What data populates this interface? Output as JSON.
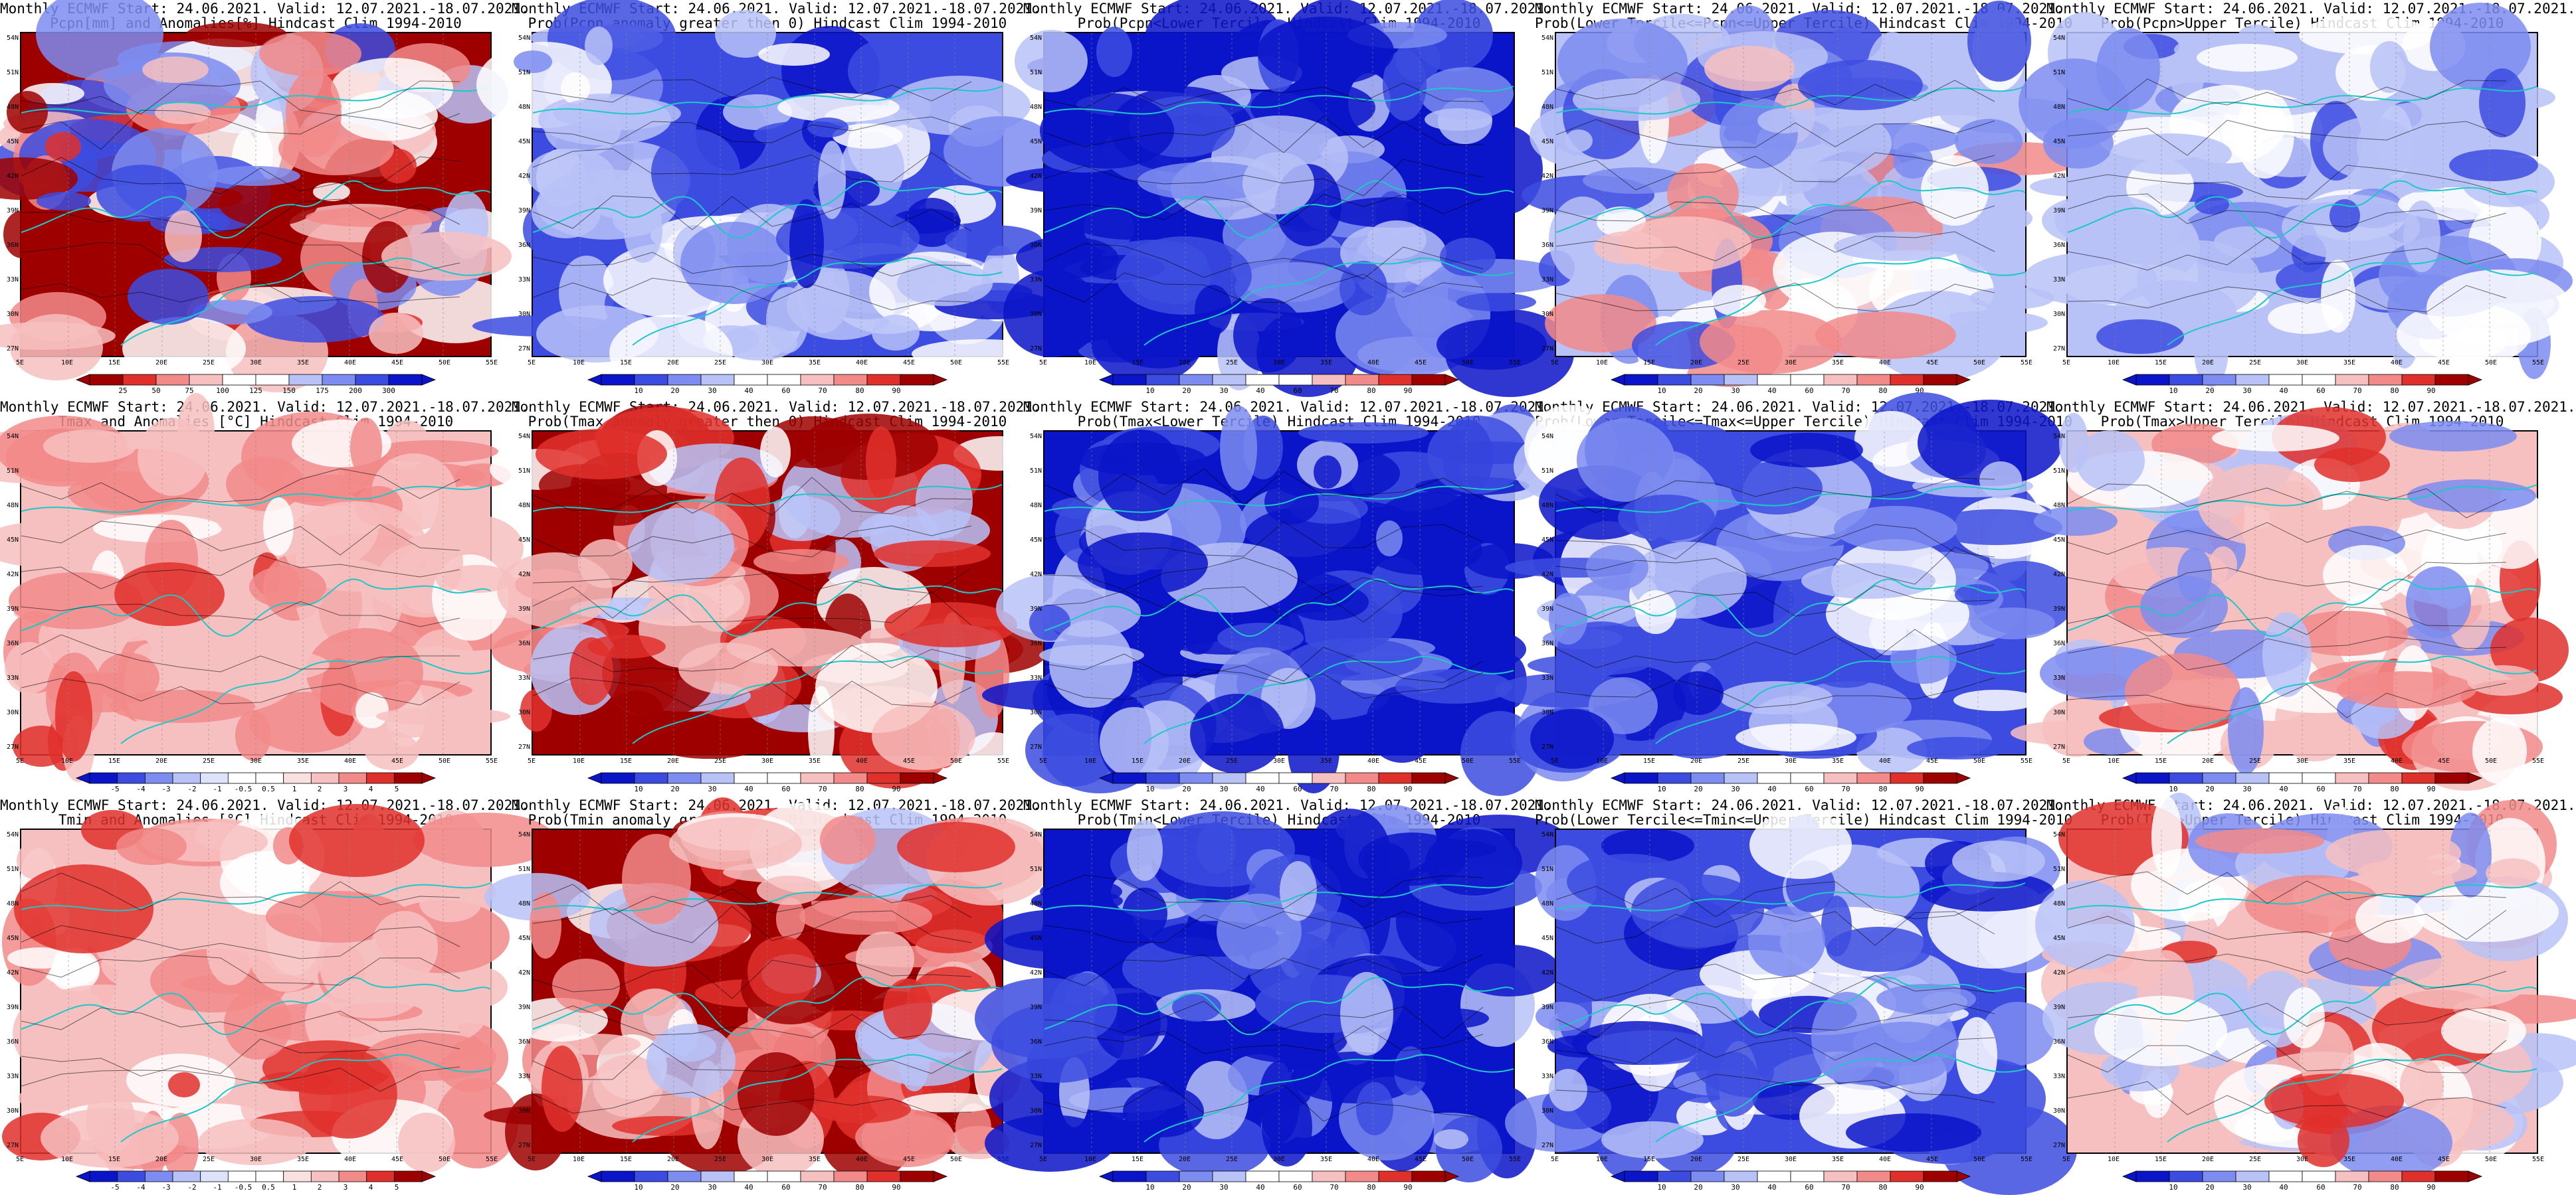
{
  "colors": {
    "deep_blue": "#0a14c8",
    "blue": "#3c4ce0",
    "mid_blue": "#7d8cf0",
    "light_blue": "#b8c2f7",
    "white": "#ffffff",
    "light_red": "#f7c0c0",
    "pink": "#f28a8a",
    "red": "#e0302c",
    "dark_red": "#9e0000",
    "coast": "#1ec8c8",
    "contour": "#000000"
  },
  "lat_labels": [
    "54N",
    "51N",
    "48N",
    "45N",
    "42N",
    "39N",
    "36N",
    "33N",
    "30N",
    "27N"
  ],
  "lon_labels": [
    "5E",
    "10E",
    "15E",
    "20E",
    "25E",
    "30E",
    "35E",
    "40E",
    "45E",
    "50E",
    "55E"
  ],
  "panels": [
    {
      "title1": "Monthly ECMWF Start: 24.06.2021. Valid: 12.07.2021.-18.07.2021.",
      "title2": "Pcpn[mm] and Anomalies[%] Hindcast Clim 1994-2010",
      "style": "anom_pcp",
      "ticks": [
        "25",
        "50",
        "75",
        "100",
        "125",
        "150",
        "175",
        "200",
        "300"
      ]
    },
    {
      "title1": "Monthly ECMWF Start: 24.06.2021. Valid: 12.07.2021.-18.07.2021.",
      "title2": "Prob(Pcpn anomaly greater then 0) Hindcast Clim 1994-2010",
      "style": "blue_heavy",
      "ticks": [
        "10",
        "20",
        "30",
        "40",
        "60",
        "70",
        "80",
        "90"
      ]
    },
    {
      "title1": "Monthly ECMWF Start: 24.06.2021. Valid: 12.07.2021.-18.07.2021.",
      "title2": "Prob(Pcpn<Lower Tercile) Hindcast Clim 1994-2010",
      "style": "blue_deep",
      "ticks": [
        "10",
        "20",
        "30",
        "40",
        "60",
        "70",
        "80",
        "90"
      ]
    },
    {
      "title1": "Monthly ECMWF Start: 24.06.2021. Valid: 12.07.2021.-18.07.2021.",
      "title2": "Prob(Lower Tercile<=Pcpn<=Upper Tercile) Hindcast Clim 1994-2010",
      "style": "mixed_light",
      "ticks": [
        "10",
        "20",
        "30",
        "40",
        "60",
        "70",
        "80",
        "90"
      ]
    },
    {
      "title1": "Monthly ECMWF Start: 24.06.2021. Valid: 12.07.2021.-18.07.2021.",
      "title2": "Prob(Pcpn>Upper Tercile) Hindcast Clim 1994-2010",
      "style": "blue_light",
      "ticks": [
        "10",
        "20",
        "30",
        "40",
        "60",
        "70",
        "80",
        "90"
      ]
    },
    {
      "title1": "Monthly ECMWF Start: 24.06.2021. Valid: 12.07.2021.-18.07.2021.",
      "title2": "Tmax and Anomalies [°C] Hindcast Clim 1994-2010",
      "style": "red_light",
      "ticks": [
        "-5",
        "-4",
        "-3",
        "-2",
        "-1",
        "-0.5",
        "0.5",
        "1",
        "2",
        "3",
        "4",
        "5"
      ]
    },
    {
      "title1": "Monthly ECMWF Start: 24.06.2021. Valid: 12.07.2021.-18.07.2021.",
      "title2": "Prob(Tmax anomaly greater then 0) Hindcast Clim 1994-2010",
      "style": "red_heavy",
      "ticks": [
        "10",
        "20",
        "30",
        "40",
        "60",
        "70",
        "80",
        "90"
      ]
    },
    {
      "title1": "Monthly ECMWF Start: 24.06.2021. Valid: 12.07.2021.-18.07.2021.",
      "title2": "Prob(Tmax<Lower Tercile) Hindcast Clim 1994-2010",
      "style": "blue_deep",
      "ticks": [
        "10",
        "20",
        "30",
        "40",
        "60",
        "70",
        "80",
        "90"
      ]
    },
    {
      "title1": "Monthly ECMWF Start: 24.06.2021. Valid: 12.07.2021.-18.07.2021.",
      "title2": "Prob(Lower Tercile<=Tmax<=Upper Tercile) Hindcast Clim 1994-2010",
      "style": "blue_mid",
      "ticks": [
        "10",
        "20",
        "30",
        "40",
        "60",
        "70",
        "80",
        "90"
      ]
    },
    {
      "title1": "Monthly ECMWF Start: 24.06.2021. Valid: 12.07.2021.-18.07.2021.",
      "title2": "Prob(Tmax>Upper Tercile) Hindcast Clim 1994-2010",
      "style": "red_mixed",
      "ticks": [
        "10",
        "20",
        "30",
        "40",
        "60",
        "70",
        "80",
        "90"
      ]
    },
    {
      "title1": "Monthly ECMWF Start: 24.06.2021. Valid: 12.07.2021.-18.07.2021.",
      "title2": "Tmin and Anomalies [°C] Hindcast Clim 1994-2010",
      "style": "red_light",
      "ticks": [
        "-5",
        "-4",
        "-3",
        "-2",
        "-1",
        "-0.5",
        "0.5",
        "1",
        "2",
        "3",
        "4",
        "5"
      ]
    },
    {
      "title1": "Monthly ECMWF Start: 24.06.2021. Valid: 12.07.2021.-18.07.2021.",
      "title2": "Prob(Tmin anomaly greater then 0) Hindcast Clim 1994-2010",
      "style": "red_heavy",
      "ticks": [
        "10",
        "20",
        "30",
        "40",
        "60",
        "70",
        "80",
        "90"
      ]
    },
    {
      "title1": "Monthly ECMWF Start: 24.06.2021. Valid: 12.07.2021.-18.07.2021.",
      "title2": "Prob(Tmin<Lower Tercile) Hindcast Clim 1994-2010",
      "style": "blue_deep",
      "ticks": [
        "10",
        "20",
        "30",
        "40",
        "60",
        "70",
        "80",
        "90"
      ]
    },
    {
      "title1": "Monthly ECMWF Start: 24.06.2021. Valid: 12.07.2021.-18.07.2021.",
      "title2": "Prob(Lower Tercile<=Tmin<=Upper Tercile) Hindcast Clim 1994-2010",
      "style": "blue_mid",
      "ticks": [
        "10",
        "20",
        "30",
        "40",
        "60",
        "70",
        "80",
        "90"
      ]
    },
    {
      "title1": "Monthly ECMWF Start: 24.06.2021. Valid: 12.07.2021.-18.07.2021.",
      "title2": "Prob(Tmin>Upper Tercile) Hindcast Clim 1994-2010",
      "style": "red_mixed",
      "ticks": [
        "10",
        "20",
        "30",
        "40",
        "60",
        "70",
        "80",
        "90"
      ]
    }
  ]
}
